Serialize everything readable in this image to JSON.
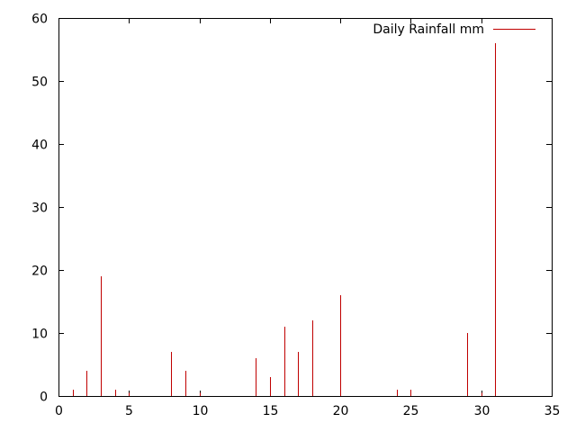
{
  "chart_data": {
    "type": "bar",
    "title": "",
    "xlabel": "",
    "ylabel": "",
    "xlim": [
      0,
      35
    ],
    "ylim": [
      0,
      60
    ],
    "x_ticks": [
      0,
      5,
      10,
      15,
      20,
      25,
      30,
      35
    ],
    "y_ticks": [
      0,
      10,
      20,
      30,
      40,
      50,
      60
    ],
    "grid": false,
    "legend_position": "top-right",
    "series": [
      {
        "name": "Daily Rainfall mm",
        "color": "#c00000",
        "style": "impulses",
        "x": [
          1,
          2,
          3,
          4,
          5,
          8,
          9,
          10,
          14,
          15,
          16,
          17,
          18,
          20,
          24,
          25,
          29,
          30,
          31
        ],
        "y": [
          1,
          4,
          19,
          1,
          0.5,
          7,
          4,
          0.5,
          6,
          3,
          11,
          7,
          12,
          16,
          1,
          1,
          10,
          0.5,
          56
        ]
      }
    ]
  }
}
